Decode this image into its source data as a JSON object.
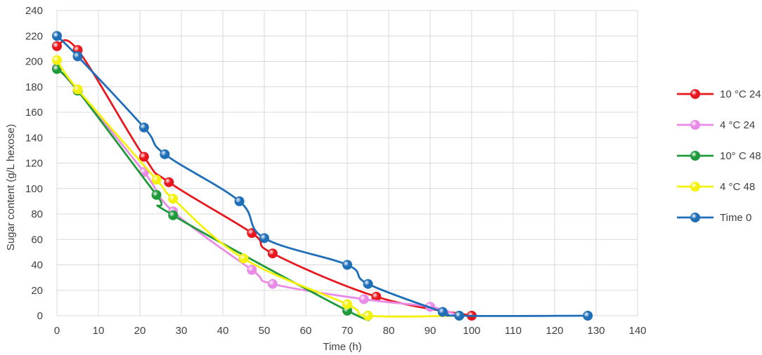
{
  "chart_data": {
    "type": "line",
    "title": "",
    "xlabel": "Time (h)",
    "ylabel": "Sugar content (g/L hexose)",
    "xlim": [
      0,
      140
    ],
    "ylim": [
      0,
      240
    ],
    "x_ticks": [
      0,
      10,
      20,
      30,
      40,
      50,
      60,
      70,
      80,
      90,
      100,
      110,
      120,
      130,
      140
    ],
    "y_ticks": [
      0,
      20,
      40,
      60,
      80,
      100,
      120,
      140,
      160,
      180,
      200,
      220,
      240
    ],
    "grid": true,
    "legend_position": "right",
    "series": [
      {
        "name": "10 °C 24",
        "color": "#e8161d",
        "points": [
          [
            0,
            212
          ],
          [
            5,
            209
          ],
          [
            21,
            125
          ],
          [
            27,
            105
          ],
          [
            47,
            65
          ],
          [
            52,
            49
          ],
          [
            77,
            15
          ],
          [
            100,
            0
          ]
        ]
      },
      {
        "name": "4 °C 24",
        "color": "#e98be6",
        "points": [
          [
            0,
            195
          ],
          [
            5,
            177
          ],
          [
            21,
            113
          ],
          [
            28,
            82
          ],
          [
            47,
            36
          ],
          [
            52,
            25
          ],
          [
            74,
            13
          ],
          [
            90,
            7
          ],
          [
            97,
            0
          ]
        ]
      },
      {
        "name": "10° C 48",
        "color": "#1e9a3a",
        "points": [
          [
            0,
            194
          ],
          [
            5,
            177
          ],
          [
            24,
            95
          ],
          [
            28,
            79
          ],
          [
            70,
            4
          ],
          [
            75,
            0
          ]
        ]
      },
      {
        "name": "4 °C 48",
        "color": "#f4f10a",
        "points": [
          [
            0,
            201
          ],
          [
            5,
            178
          ],
          [
            24,
            107
          ],
          [
            28,
            92
          ],
          [
            45,
            45
          ],
          [
            70,
            9
          ],
          [
            75,
            0
          ],
          [
            97,
            0
          ]
        ]
      },
      {
        "name": "Time 0",
        "color": "#1f6fb8",
        "points": [
          [
            0,
            220
          ],
          [
            5,
            204
          ],
          [
            21,
            148
          ],
          [
            26,
            127
          ],
          [
            44,
            90
          ],
          [
            50,
            61
          ],
          [
            70,
            40
          ],
          [
            75,
            25
          ],
          [
            93,
            3
          ],
          [
            97,
            0
          ],
          [
            128,
            0
          ]
        ]
      }
    ]
  }
}
